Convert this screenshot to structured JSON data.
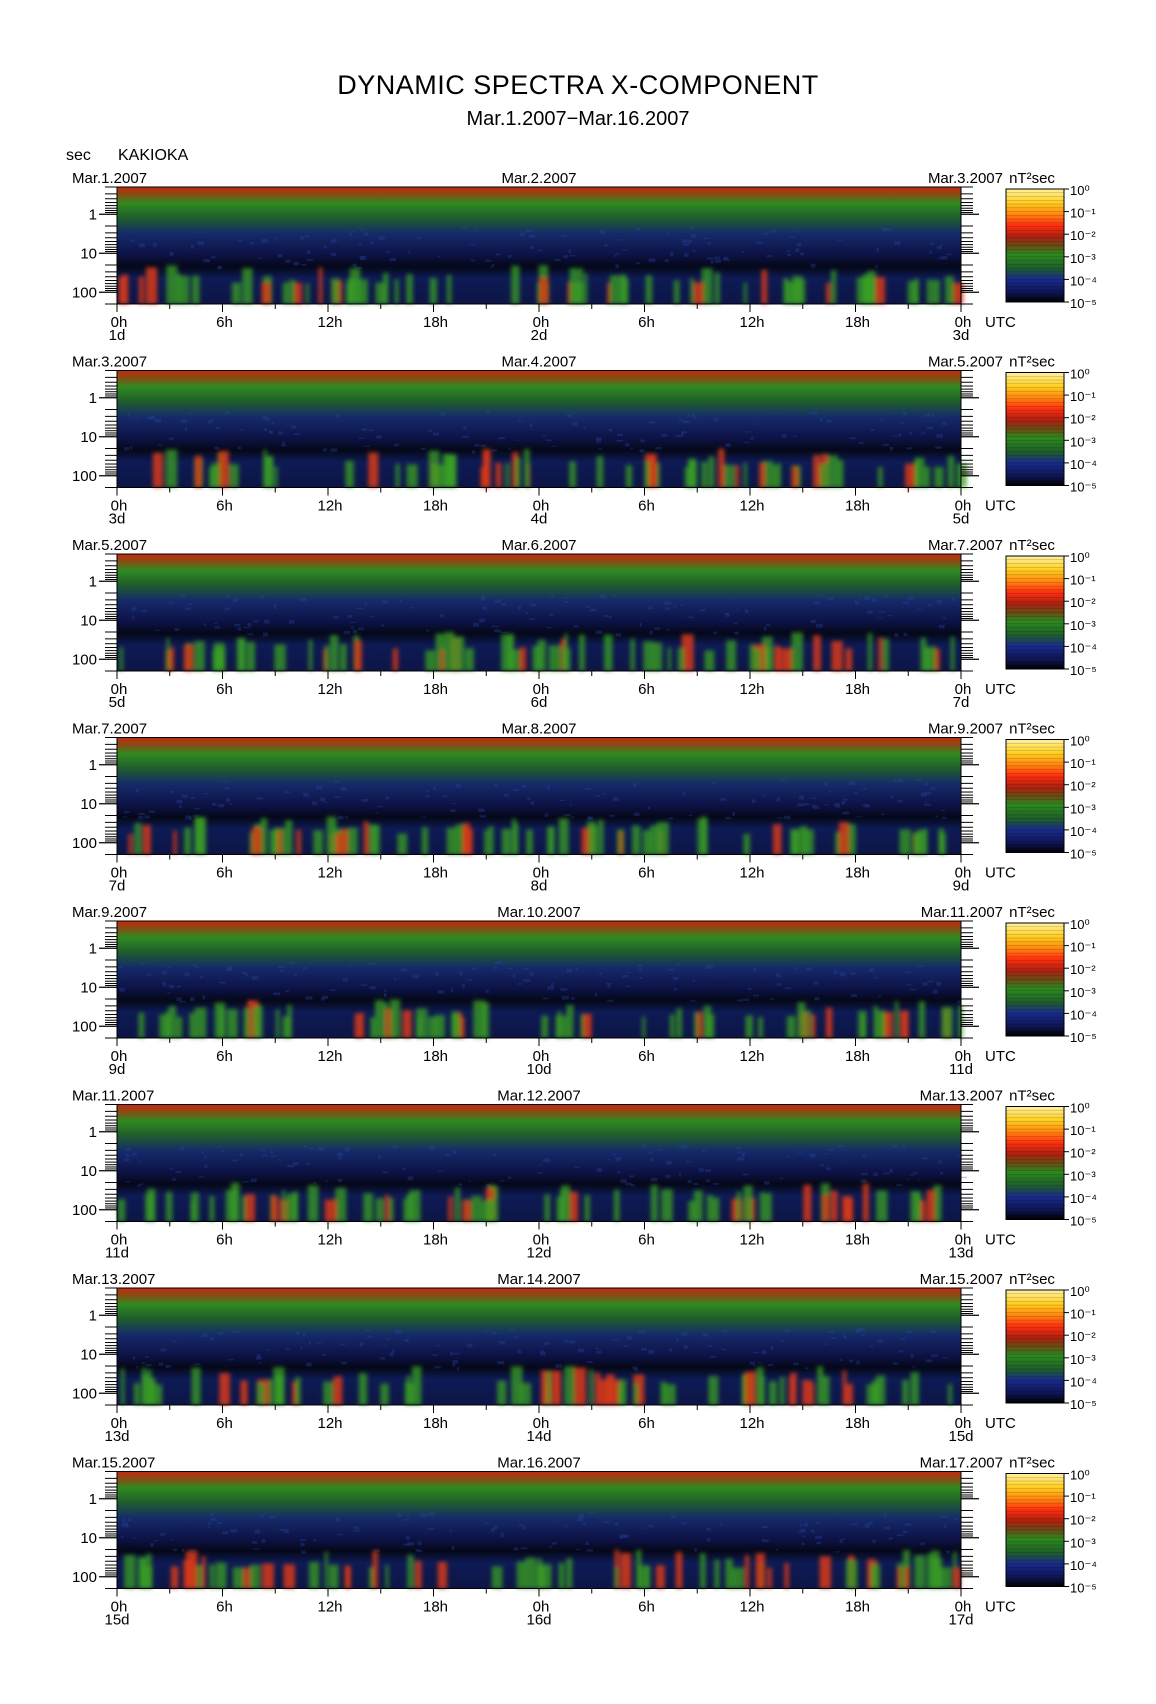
{
  "figure": {
    "title": "DYNAMIC SPECTRA X-COMPONENT",
    "subtitle": "Mar.1.2007−Mar.16.2007",
    "y_unit": "sec",
    "station": "KAKIOKA",
    "colorbar_unit": "nT²sec",
    "x_axis_unit": "UTC"
  },
  "chart_data": {
    "type": "heatmap",
    "title": "DYNAMIC SPECTRA X-COMPONENT",
    "ylabel": "sec",
    "y_ticks": [
      "1",
      "10",
      "100"
    ],
    "y_scale": "log",
    "ylim": [
      0.2,
      200
    ],
    "x_ticks": [
      "0h",
      "6h",
      "12h",
      "18h",
      "0h",
      "6h",
      "12h",
      "18h",
      "0h"
    ],
    "x_range_hours": [
      0,
      48
    ],
    "colorbar": {
      "ticks": [
        "10⁰",
        "10⁻¹",
        "10⁻²",
        "10⁻³",
        "10⁻⁴",
        "10⁻⁵"
      ],
      "range": [
        1e-05,
        1
      ],
      "scale": "log",
      "colors": [
        "#000000",
        "#0d1550",
        "#1a2a8c",
        "#1f5f2a",
        "#2c8a1e",
        "#8a4a12",
        "#d42410",
        "#ff3010",
        "#ff8a10",
        "#ffd020",
        "#fff0a0"
      ]
    },
    "panels": [
      {
        "start_date": "Mar.1.2007",
        "mid_date": "Mar.2.2007",
        "end_date": "Mar.3.2007",
        "day_labels": [
          "1d",
          "2d",
          "3d"
        ]
      },
      {
        "start_date": "Mar.3.2007",
        "mid_date": "Mar.4.2007",
        "end_date": "Mar.5.2007",
        "day_labels": [
          "3d",
          "4d",
          "5d"
        ]
      },
      {
        "start_date": "Mar.5.2007",
        "mid_date": "Mar.6.2007",
        "end_date": "Mar.7.2007",
        "day_labels": [
          "5d",
          "6d",
          "7d"
        ]
      },
      {
        "start_date": "Mar.7.2007",
        "mid_date": "Mar.8.2007",
        "end_date": "Mar.9.2007",
        "day_labels": [
          "7d",
          "8d",
          "9d"
        ]
      },
      {
        "start_date": "Mar.9.2007",
        "mid_date": "Mar.10.2007",
        "end_date": "Mar.11.2007",
        "day_labels": [
          "9d",
          "10d",
          "11d"
        ]
      },
      {
        "start_date": "Mar.11.2007",
        "mid_date": "Mar.12.2007",
        "end_date": "Mar.13.2007",
        "day_labels": [
          "11d",
          "12d",
          "13d"
        ]
      },
      {
        "start_date": "Mar.13.2007",
        "mid_date": "Mar.14.2007",
        "end_date": "Mar.15.2007",
        "day_labels": [
          "13d",
          "14d",
          "15d"
        ]
      },
      {
        "start_date": "Mar.15.2007",
        "mid_date": "Mar.16.2007",
        "end_date": "Mar.17.2007",
        "day_labels": [
          "15d",
          "16d",
          "17d"
        ]
      }
    ]
  }
}
